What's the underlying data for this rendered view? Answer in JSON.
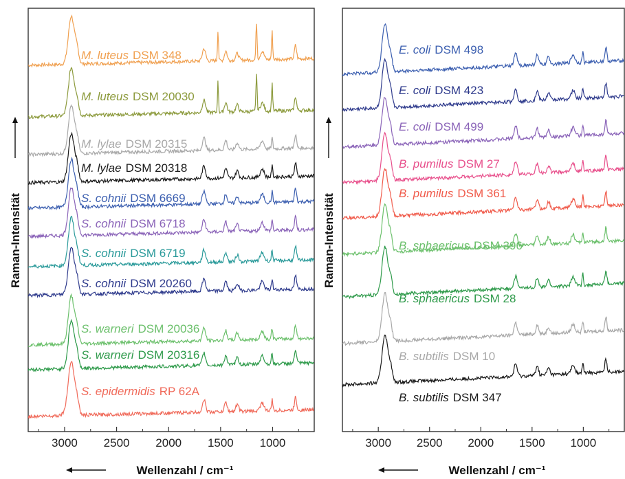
{
  "chart_data": [
    {
      "type": "line",
      "xlabel": "Wellenzahl / cm⁻¹",
      "ylabel": "Raman-Intensität",
      "xlim": [
        3350,
        600
      ],
      "xticks": [
        3000,
        2500,
        2000,
        1500,
        1000
      ],
      "x_reversed": true,
      "yticks": false,
      "series": [
        {
          "species": "M. luteus",
          "strain": "DSM 348",
          "color": "#F0A050"
        },
        {
          "species": "M. luteus",
          "strain": "DSM 20030",
          "color": "#8C9A3C"
        },
        {
          "species": "M. lylae",
          "strain": "DSM 20315",
          "color": "#A8A8A8"
        },
        {
          "species": "M. lylae",
          "strain": "DSM 20318",
          "color": "#1A1A1A"
        },
        {
          "species": "S. cohnii",
          "strain": "DSM 6669",
          "color": "#3C5FB0"
        },
        {
          "species": "S. cohnii",
          "strain": "DSM 6718",
          "color": "#8A63B8"
        },
        {
          "species": "S. cohnii",
          "strain": "DSM 6719",
          "color": "#2A9A9A"
        },
        {
          "species": "S. cohnii",
          "strain": "DSM 20260",
          "color": "#2E3A8C"
        },
        {
          "species": "S. warneri",
          "strain": "DSM 20036",
          "color": "#6CC06C"
        },
        {
          "species": "S. warneri",
          "strain": "DSM 20316",
          "color": "#2E9A4A"
        },
        {
          "species": "S. epidermidis",
          "strain": "RP 62A",
          "color": "#F06A5A"
        }
      ]
    },
    {
      "type": "line",
      "xlabel": "Wellenzahl / cm⁻¹",
      "ylabel": "Raman-Intensität",
      "xlim": [
        3350,
        600
      ],
      "xticks": [
        3000,
        2500,
        2000,
        1500,
        1000
      ],
      "x_reversed": true,
      "yticks": false,
      "series": [
        {
          "species": "E. coli",
          "strain": "DSM 498",
          "color": "#3C5FB0"
        },
        {
          "species": "E. coli",
          "strain": "DSM 423",
          "color": "#2E3A8C"
        },
        {
          "species": "E. coli",
          "strain": "DSM 499",
          "color": "#8A63B8"
        },
        {
          "species": "B. pumilus",
          "strain": "DSM 27",
          "color": "#E8508C"
        },
        {
          "species": "B. pumilus",
          "strain": "DSM 361",
          "color": "#F05A4A"
        },
        {
          "species": "B. sphaericus",
          "strain": "DSM 396",
          "color": "#6CC06C"
        },
        {
          "species": "B. sphaericus",
          "strain": "DSM 28",
          "color": "#2E9A4A"
        },
        {
          "species": "B. subtilis",
          "strain": "DSM 10",
          "color": "#A8A8A8"
        },
        {
          "species": "B. subtilis",
          "strain": "DSM 347",
          "color": "#1A1A1A"
        }
      ]
    }
  ]
}
